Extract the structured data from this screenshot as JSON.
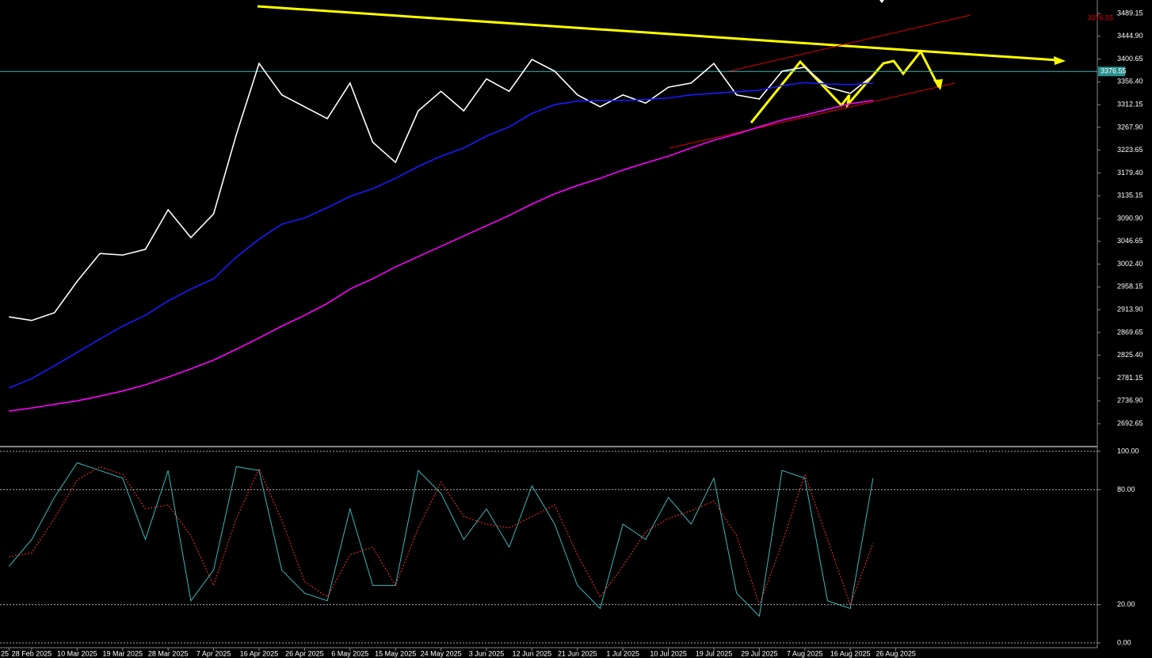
{
  "chart_data": [
    {
      "type": "line",
      "categories": [
        "25",
        "28 Feb 2025",
        null,
        "10 Mar 2025",
        null,
        "19 Mar 2025",
        null,
        "28 Mar 2025",
        null,
        "7 Apr 2025",
        null,
        "16 Apr 2025",
        null,
        "26 Apr 2025",
        null,
        "6 May 2025",
        null,
        "15 May 2025",
        null,
        "24 May 2025",
        null,
        "3 Jun 2025",
        null,
        "12 Jun 2025",
        null,
        "21 Jun 2025",
        null,
        "1 Jul 2025",
        null,
        "10 Jul 2025",
        null,
        "19 Jul 2025",
        null,
        "29 Jul 2025",
        null,
        "7 Aug 2025",
        null,
        "16 Aug 2025",
        null,
        "26 Aug 2025"
      ],
      "series": [
        {
          "color": "#ffffff",
          "values": [
            2900,
            2893,
            2908,
            2969,
            3023,
            3020,
            3031,
            3108,
            3054,
            3100,
            3254,
            3392,
            3331,
            3308,
            3285,
            3354,
            3239,
            3200,
            3300,
            3338,
            3300,
            3362,
            3338,
            3400,
            3377,
            3331,
            3308,
            3331,
            3315,
            3346,
            3354,
            3392,
            3331,
            3323,
            3377,
            3385,
            3346,
            3334,
            3369,
            null
          ]
        },
        {
          "color": "#1a1aff",
          "values": [
            2762,
            2780,
            2805,
            2831,
            2857,
            2882,
            2903,
            2931,
            2954,
            2974,
            3016,
            3051,
            3080,
            3092,
            3112,
            3134,
            3149,
            3169,
            3192,
            3212,
            3228,
            3251,
            3269,
            3295,
            3312,
            3319,
            3320,
            3320,
            3322,
            3325,
            3331,
            3334,
            3337,
            3340,
            3349,
            3355,
            3352,
            3351,
            3354,
            null
          ]
        },
        {
          "color": "#ff00ff",
          "values": [
            2717,
            2723,
            2730,
            2737,
            2746,
            2756,
            2768,
            2783,
            2799,
            2816,
            2837,
            2859,
            2882,
            2903,
            2926,
            2954,
            2974,
            2997,
            3017,
            3037,
            3057,
            3077,
            3097,
            3119,
            3139,
            3155,
            3169,
            3185,
            3199,
            3212,
            3228,
            3243,
            3255,
            3269,
            3282,
            3292,
            3303,
            3314,
            3320,
            null
          ]
        }
      ],
      "current_price": 3376.55,
      "ylim": [
        2649.6,
        3515.3
      ],
      "yticks": [
        3489.15,
        {
          "value": 3444.9,
          "label": "3444.90"
        },
        3400.65,
        {
          "value": 3356.4,
          "label": "3356.40"
        },
        3312.15,
        {
          "value": 3267.9,
          "label": "3267.90"
        },
        3223.65,
        {
          "value": 3179.4,
          "label": "3179.40"
        },
        3135.15,
        {
          "value": 3090.9,
          "label": "3090.90"
        },
        3046.65,
        {
          "value": 3002.4,
          "label": "3002.40"
        },
        2958.15,
        {
          "value": 2913.9,
          "label": "2913.90"
        },
        2869.65,
        {
          "value": 2825.4,
          "label": "2825.40"
        },
        2781.15,
        {
          "value": 2736.9,
          "label": "2736.90"
        },
        2692.65
      ]
    },
    {
      "type": "line",
      "series": [
        {
          "color": "#3cb8b8",
          "values": [
            40,
            54,
            76,
            94,
            90,
            86,
            54,
            90,
            22,
            38,
            92,
            90,
            38,
            26,
            22,
            70,
            30,
            30,
            90,
            78,
            54,
            70,
            50,
            82,
            62,
            30,
            18,
            62,
            54,
            76,
            62,
            86,
            26,
            14,
            90,
            86,
            22,
            18,
            86,
            null
          ]
        },
        {
          "color": "#ff3030",
          "dashed": true,
          "values": [
            45,
            47,
            65,
            85,
            92,
            88,
            70,
            72,
            56,
            30,
            65,
            91,
            64,
            32,
            24,
            46,
            50,
            30,
            60,
            84,
            66,
            62,
            60,
            66,
            72,
            46,
            24,
            40,
            58,
            65,
            69,
            74,
            56,
            20,
            52,
            88,
            54,
            20,
            52,
            null
          ]
        }
      ],
      "ylim": [
        0,
        100
      ],
      "yticks": [
        {
          "value": 100,
          "label": "100.00"
        },
        {
          "value": 80,
          "label": "80.00"
        },
        {
          "value": 20,
          "label": "20.00"
        },
        {
          "value": 0,
          "label": "0.00"
        }
      ]
    }
  ]
}
